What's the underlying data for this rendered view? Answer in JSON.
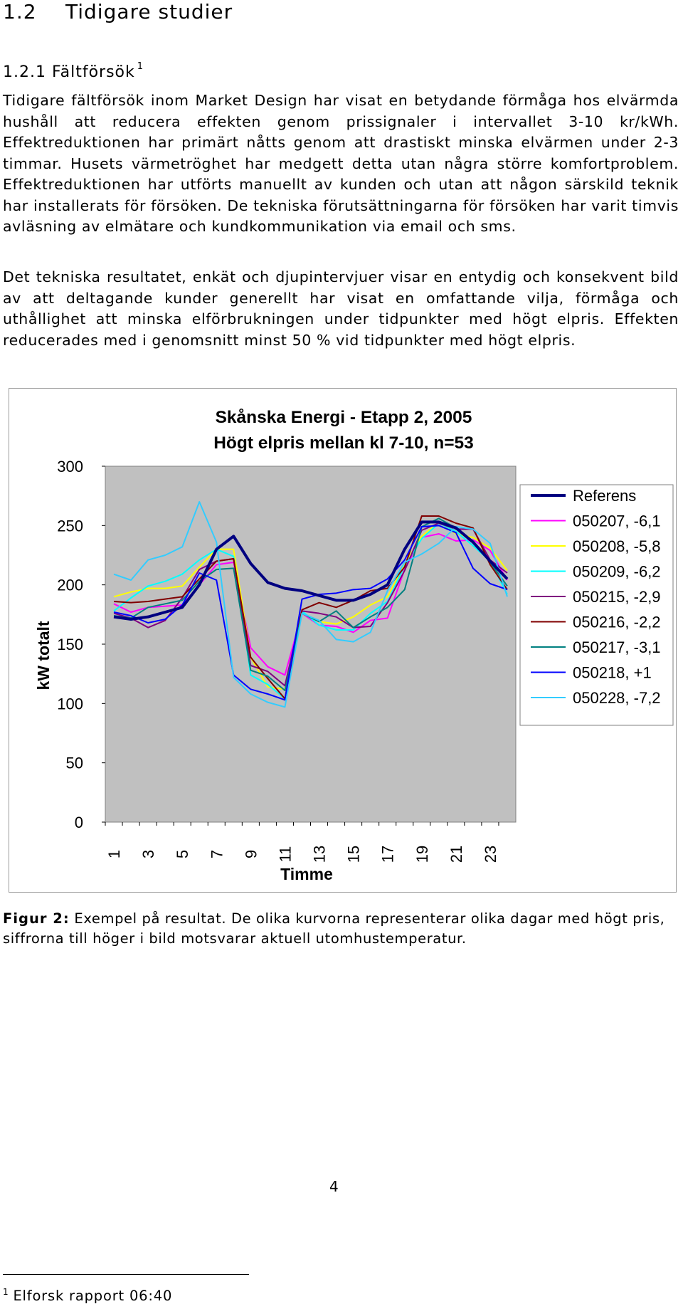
{
  "section": {
    "number": "1.2",
    "title": "Tidigare studier"
  },
  "subsection": {
    "number": "1.2.1",
    "title": "Fältförsök",
    "footnote_ref": "1"
  },
  "paragraphs": [
    "Tidigare fältförsök inom Market Design har visat en betydande förmåga hos elvärmda hushåll att reducera effekten genom prissignaler i intervallet 3-10 kr/kWh. Effektreduktionen har primärt nåtts genom att drastiskt minska elvärmen under 2-3 timmar. Husets värmetröghet har medgett detta utan några större komfortproblem. Effektreduktionen har utförts manuellt av kunden och utan att någon särskild teknik har installerats för försöken. De tekniska förutsättningarna för försöken har varit timvis avläsning av elmätare och kundkommunikation via email och sms.",
    "Det tekniska resultatet, enkät och djupintervjuer visar en entydig och konsekvent bild av att deltagande kunder generellt har visat en omfattande vilja, förmåga och uthållighet att minska elförbrukningen under tidpunkter med högt elpris. Effekten reducerades med i genomsnitt minst 50 % vid tidpunkter med högt elpris."
  ],
  "chart_data": {
    "type": "line",
    "title": "Skånska Energi - Etapp 2, 2005",
    "subtitle": "Högt elpris mellan kl 7-10, n=53",
    "xlabel": "Timme",
    "ylabel": "kW totalt",
    "ylim": [
      0,
      300
    ],
    "yticks": [
      0,
      50,
      100,
      150,
      200,
      250,
      300
    ],
    "xticks": [
      1,
      3,
      5,
      7,
      9,
      11,
      13,
      15,
      17,
      19,
      21,
      23
    ],
    "x": [
      1,
      2,
      3,
      4,
      5,
      6,
      7,
      8,
      9,
      10,
      11,
      12,
      13,
      14,
      15,
      16,
      17,
      18,
      19,
      20,
      21,
      22,
      23,
      24
    ],
    "background": "#c0c0c0",
    "legend_position": "right",
    "grid": false,
    "series": [
      {
        "name": "Referens",
        "color": "#000080",
        "width": 4,
        "values": [
          173,
          171,
          173,
          177,
          181,
          200,
          230,
          241,
          218,
          202,
          197,
          195,
          191,
          187,
          187,
          192,
          200,
          230,
          253,
          253,
          248,
          236,
          220,
          205
        ]
      },
      {
        "name": "050207, -6,1",
        "color": "#ff00ff",
        "width": 2,
        "values": [
          184,
          177,
          181,
          182,
          183,
          200,
          217,
          219,
          147,
          131,
          124,
          176,
          166,
          165,
          160,
          170,
          172,
          213,
          240,
          243,
          237,
          238,
          229,
          204
        ]
      },
      {
        "name": "050208, -5,8",
        "color": "#ffff00",
        "width": 2,
        "values": [
          190,
          194,
          197,
          197,
          199,
          215,
          230,
          230,
          139,
          114,
          112,
          176,
          169,
          167,
          173,
          183,
          190,
          217,
          241,
          253,
          243,
          240,
          231,
          212
        ]
      },
      {
        "name": "050209, -6,2",
        "color": "#00ffff",
        "width": 2,
        "values": [
          178,
          189,
          199,
          203,
          209,
          221,
          230,
          224,
          124,
          116,
          104,
          178,
          166,
          162,
          162,
          176,
          186,
          216,
          239,
          252,
          245,
          233,
          220,
          192
        ]
      },
      {
        "name": "050215, -2,9",
        "color": "#800080",
        "width": 2,
        "values": [
          176,
          172,
          164,
          170,
          189,
          213,
          220,
          222,
          132,
          127,
          115,
          178,
          176,
          173,
          164,
          165,
          185,
          212,
          246,
          252,
          247,
          247,
          221,
          210
        ]
      },
      {
        "name": "050216, -2,2",
        "color": "#800000",
        "width": 2,
        "values": [
          186,
          185,
          186,
          188,
          190,
          205,
          220,
          222,
          139,
          121,
          104,
          179,
          185,
          181,
          187,
          195,
          197,
          215,
          258,
          258,
          252,
          248,
          217,
          196
        ]
      },
      {
        "name": "050217, -3,1",
        "color": "#008080",
        "width": 2,
        "values": [
          174,
          172,
          181,
          184,
          187,
          203,
          213,
          214,
          128,
          123,
          111,
          176,
          169,
          178,
          164,
          173,
          181,
          196,
          249,
          256,
          248,
          237,
          219,
          199
        ]
      },
      {
        "name": "050218, +1",
        "color": "#0000ff",
        "width": 2,
        "values": [
          177,
          174,
          168,
          171,
          183,
          210,
          204,
          124,
          112,
          108,
          103,
          188,
          192,
          193,
          196,
          197,
          205,
          221,
          249,
          250,
          244,
          214,
          201,
          196
        ]
      },
      {
        "name": "050228, -7,2",
        "color": "#33ccff",
        "width": 2,
        "values": [
          209,
          204,
          221,
          225,
          232,
          270,
          236,
          122,
          108,
          101,
          97,
          176,
          170,
          154,
          152,
          160,
          195,
          219,
          226,
          235,
          249,
          247,
          235,
          190
        ]
      }
    ]
  },
  "figure_caption": {
    "label": "Figur 2:",
    "text": " Exempel på resultat. De olika kurvorna representerar olika dagar med högt pris, siffrorna till höger i bild motsvarar aktuell utomhustemperatur."
  },
  "footnote": {
    "ref": "1",
    "text": "Elforsk rapport 06:40"
  },
  "page_number": "4"
}
